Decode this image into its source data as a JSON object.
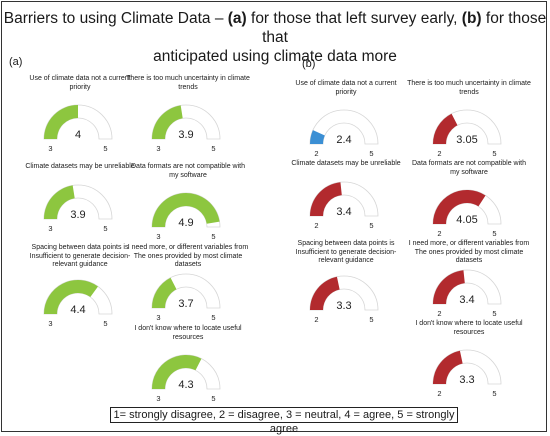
{
  "title_line1_prefix": "Barriers to using Climate Data – ",
  "title_a": "(a)",
  "title_line1_mid": " for those that left survey early, ",
  "title_b": "(b)",
  "title_line1_suffix": " for those that",
  "title_line2": "anticipated using climate data more",
  "panel_a_label": "(a)",
  "panel_b_label": "(b)",
  "legend_text": "1= strongly disagree, 2 = disagree, 3 = neutral, 4 = agree, 5 = strongly agree",
  "colors": {
    "green": "#8dc63f",
    "red": "#b22a2e",
    "blue": "#3b8fd4"
  },
  "chart_data": [
    {
      "type": "gauge",
      "panel": "(a)",
      "gauges": [
        {
          "label": "Use of climate data not a current priority",
          "value": 4,
          "value_text": "4",
          "min": 3,
          "max": 5,
          "color": "green"
        },
        {
          "label": "There is too much uncertainty in climate trends",
          "value": 3.9,
          "value_text": "3.9",
          "min": 3,
          "max": 5,
          "color": "green"
        },
        {
          "label": "Climate datasets may be unreliable",
          "value": 3.9,
          "value_text": "3.9",
          "min": 3,
          "max": 5,
          "color": "green"
        },
        {
          "label": "Data formats are not compatible with my software",
          "value": 4.9,
          "value_text": "4.9",
          "min": 3,
          "max": 5,
          "color": "green"
        },
        {
          "label": "Spacing between data points is Insufficient to generate decision-relevant guidance",
          "value": 4.4,
          "value_text": "4.4",
          "min": 3,
          "max": 5,
          "color": "green"
        },
        {
          "label": "I need more, or different variables from The ones provided by most climate datasets",
          "value": 3.7,
          "value_text": "3.7",
          "min": 3,
          "max": 5,
          "color": "green"
        },
        {
          "label": "I don't know where to locate useful resources",
          "value": 4.3,
          "value_text": "4.3",
          "min": 3,
          "max": 5,
          "color": "green"
        }
      ]
    },
    {
      "type": "gauge",
      "panel": "(b)",
      "gauges": [
        {
          "label": "Use of climate data not a current priority",
          "value": 2.4,
          "value_text": "2.4",
          "min": 2,
          "max": 5,
          "color": "blue"
        },
        {
          "label": "There is too much uncertainty in climate trends",
          "value": 3.05,
          "value_text": "3.05",
          "min": 2,
          "max": 5,
          "color": "red"
        },
        {
          "label": "Climate datasets may be unreliable",
          "value": 3.4,
          "value_text": "3.4",
          "min": 2,
          "max": 5,
          "color": "red"
        },
        {
          "label": "Data formats are not compatible with my software",
          "value": 4.05,
          "value_text": "4.05",
          "min": 2,
          "max": 5,
          "color": "red"
        },
        {
          "label": "Spacing between data points is Insufficient to generate decision-relevant guidance",
          "value": 3.3,
          "value_text": "3.3",
          "min": 2,
          "max": 5,
          "color": "red"
        },
        {
          "label": "I need more, or different variables from The ones provided by most climate datasets",
          "value": 3.4,
          "value_text": "3.4",
          "min": 2,
          "max": 5,
          "color": "red"
        },
        {
          "label": "I don't know where to locate useful resources",
          "value": 3.3,
          "value_text": "3.3",
          "min": 2,
          "max": 5,
          "color": "red"
        }
      ]
    }
  ]
}
